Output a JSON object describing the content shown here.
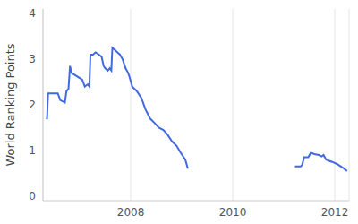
{
  "chart_data": {
    "type": "line",
    "ylabel": "World Ranking Points",
    "color": "#4169e1",
    "grid": "x",
    "xlim": [
      2006.28,
      2012.28
    ],
    "xticks": [
      2008,
      2010,
      2012
    ],
    "ylim": [
      -0.1,
      4.1
    ],
    "yticks": [
      0,
      1,
      2,
      3,
      4
    ],
    "x": [
      2006.34,
      2006.36,
      2006.38,
      2006.57,
      2006.62,
      2006.71,
      2006.74,
      2006.78,
      2006.81,
      2006.84,
      2006.91,
      2006.98,
      2007.05,
      2007.1,
      2007.16,
      2007.19,
      2007.21,
      2007.26,
      2007.31,
      2007.38,
      2007.43,
      2007.47,
      2007.5,
      2007.55,
      2007.59,
      2007.62,
      2007.64,
      2007.69,
      2007.74,
      2007.79,
      2007.84,
      2007.9,
      2007.95,
      2007.98,
      2008.03,
      2008.12,
      2008.21,
      2008.29,
      2008.38,
      2008.47,
      2008.55,
      2008.64,
      2008.72,
      2008.81,
      2008.9,
      2008.98,
      2009.07,
      2009.12,
      2010.2,
      2011.22,
      2011.33,
      2011.36,
      2011.4,
      2011.48,
      2011.53,
      2011.6,
      2011.69,
      2011.74,
      2011.78,
      2011.83,
      2011.95,
      2012.05,
      2012.16,
      2012.24
    ],
    "values": [
      1.7,
      1.7,
      2.25,
      2.25,
      2.1,
      2.05,
      2.3,
      2.35,
      2.85,
      2.7,
      2.65,
      2.6,
      2.55,
      2.4,
      2.45,
      2.4,
      3.1,
      3.1,
      3.15,
      3.1,
      3.05,
      2.85,
      2.8,
      2.75,
      2.8,
      2.75,
      3.25,
      3.2,
      3.15,
      3.1,
      3.0,
      2.8,
      2.7,
      2.6,
      2.4,
      2.3,
      2.15,
      1.9,
      1.7,
      1.6,
      1.5,
      1.45,
      1.35,
      1.2,
      1.1,
      0.95,
      0.8,
      0.6,
      null,
      0.65,
      0.65,
      0.68,
      0.85,
      0.85,
      0.95,
      0.92,
      0.9,
      0.87,
      0.9,
      0.8,
      0.75,
      0.7,
      0.62,
      0.55
    ]
  }
}
